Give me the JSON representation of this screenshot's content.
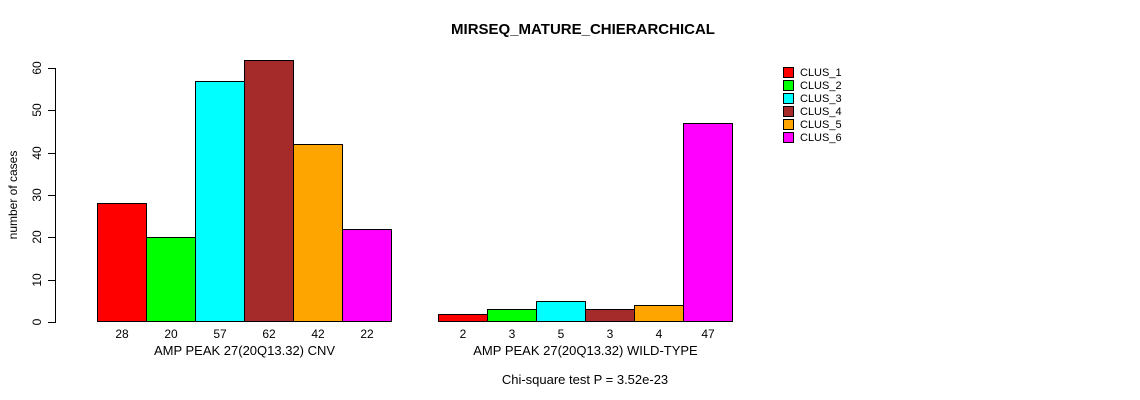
{
  "chart_data": {
    "type": "bar",
    "title": "MIRSEQ_MATURE_CHIERARCHICAL",
    "ylabel": "number of cases",
    "ylim": [
      0,
      60
    ],
    "yticks": [
      0,
      10,
      20,
      30,
      40,
      50,
      60
    ],
    "grid": false,
    "legend_position": "right-outside",
    "categories": [
      "AMP PEAK 27(20Q13.32) CNV",
      "AMP PEAK 27(20Q13.32) WILD-TYPE"
    ],
    "series": [
      {
        "name": "CLUS_1",
        "color": "#FF0000",
        "values": [
          28,
          2
        ]
      },
      {
        "name": "CLUS_2",
        "color": "#00FF00",
        "values": [
          20,
          3
        ]
      },
      {
        "name": "CLUS_3",
        "color": "#00FFFF",
        "values": [
          57,
          5
        ]
      },
      {
        "name": "CLUS_4",
        "color": "#A52A2A",
        "values": [
          62,
          3
        ]
      },
      {
        "name": "CLUS_5",
        "color": "#FFA500",
        "values": [
          42,
          4
        ]
      },
      {
        "name": "CLUS_6",
        "color": "#FF00FF",
        "values": [
          22,
          47
        ]
      }
    ],
    "bar_value_labels": [
      [
        28,
        20,
        57,
        62,
        42,
        22
      ],
      [
        2,
        3,
        5,
        3,
        4,
        47
      ]
    ],
    "annotation": "Chi-square test P = 3.52e-23"
  }
}
